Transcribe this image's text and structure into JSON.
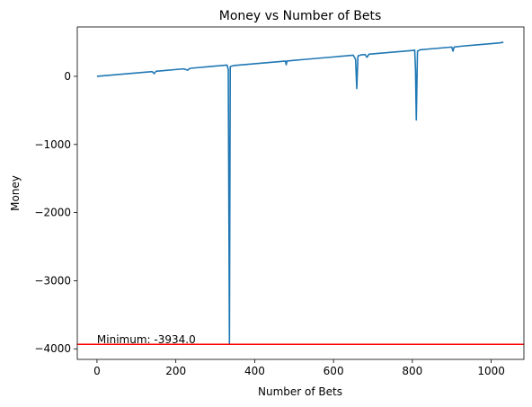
{
  "chart_data": {
    "type": "line",
    "title": "Money vs Number of Bets",
    "xlabel": "Number of Bets",
    "ylabel": "Money",
    "xlim": [
      -50,
      1083
    ],
    "ylim": [
      -4155,
      725
    ],
    "xticks": [
      0,
      200,
      400,
      600,
      800,
      1000
    ],
    "yticks": [
      -4000,
      -3000,
      -2000,
      -1000,
      0
    ],
    "xtick_labels": [
      "0",
      "200",
      "400",
      "600",
      "800",
      "1000"
    ],
    "ytick_labels": [
      "−4000",
      "−3000",
      "−2000",
      "−1000",
      "0"
    ],
    "grid": false,
    "series": [
      {
        "color": "#1f77b4",
        "x": [
          0,
          20,
          40,
          60,
          80,
          100,
          120,
          140,
          145,
          150,
          170,
          200,
          220,
          230,
          235,
          240,
          260,
          280,
          300,
          320,
          330,
          333,
          336,
          338,
          341,
          345,
          350,
          370,
          400,
          420,
          440,
          460,
          478,
          480,
          482,
          500,
          520,
          540,
          560,
          580,
          600,
          620,
          640,
          650,
          656,
          659,
          662,
          670,
          680,
          685,
          690,
          700,
          720,
          740,
          760,
          780,
          800,
          806,
          808,
          810,
          813,
          820,
          840,
          860,
          880,
          900,
          903,
          906,
          920,
          940,
          960,
          980,
          1000,
          1010,
          1020,
          1031
        ],
        "y": [
          0,
          10,
          20,
          30,
          40,
          50,
          60,
          70,
          40,
          75,
          85,
          100,
          110,
          90,
          115,
          120,
          130,
          140,
          150,
          160,
          165,
          100,
          -3934,
          140,
          150,
          155,
          160,
          170,
          185,
          195,
          205,
          215,
          225,
          170,
          225,
          235,
          245,
          255,
          265,
          275,
          285,
          295,
          305,
          310,
          250,
          -180,
          300,
          315,
          320,
          280,
          325,
          330,
          340,
          350,
          360,
          370,
          380,
          385,
          100,
          -640,
          370,
          390,
          400,
          410,
          420,
          430,
          370,
          430,
          440,
          450,
          460,
          470,
          480,
          485,
          490,
          500
        ]
      }
    ],
    "hline": {
      "y": -3934,
      "color": "#ff0000"
    },
    "annotation": {
      "text": "Minimum: -3934.0",
      "x": 0,
      "y": -3934
    }
  }
}
